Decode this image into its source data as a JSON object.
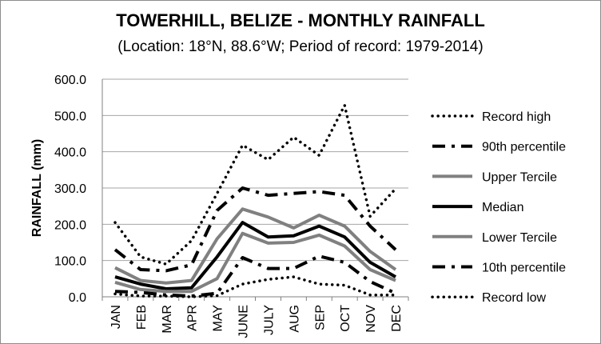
{
  "chart_data": {
    "type": "line",
    "title": "TOWERHILL, BELIZE - MONTHLY RAINFALL",
    "subtitle": "(Location: 18°N, 88.6°W; Period of record: 1979-2014)",
    "xlabel": "",
    "ylabel": "RAINFALL (mm)",
    "ylim": [
      0,
      600
    ],
    "yticks": [
      "0.0",
      "100.0",
      "200.0",
      "300.0",
      "400.0",
      "500.0",
      "600.0"
    ],
    "grid": "horizontal",
    "legend_position": "right",
    "categories": [
      "JAN",
      "FEB",
      "MAR",
      "APR",
      "MAY",
      "JUNE",
      "JULY",
      "AUG",
      "SEP",
      "OCT",
      "NOV",
      "DEC"
    ],
    "series": [
      {
        "name": "Record high",
        "style": "dotted",
        "color": "#000000",
        "values": [
          205,
          110,
          90,
          155,
          285,
          418,
          378,
          440,
          390,
          528,
          222,
          298
        ]
      },
      {
        "name": "90th percentile",
        "style": "dashdot",
        "color": "#000000",
        "values": [
          130,
          75,
          72,
          88,
          238,
          300,
          280,
          285,
          290,
          280,
          195,
          130
        ]
      },
      {
        "name": "Upper Tercile",
        "style": "solid",
        "color": "#808080",
        "values": [
          80,
          45,
          38,
          45,
          160,
          242,
          220,
          190,
          225,
          195,
          125,
          75
        ]
      },
      {
        "name": "Median",
        "style": "solid",
        "color": "#000000",
        "values": [
          55,
          35,
          22,
          25,
          110,
          205,
          165,
          168,
          195,
          165,
          95,
          55
        ]
      },
      {
        "name": "Lower Tercile",
        "style": "solid",
        "color": "#808080",
        "values": [
          40,
          20,
          15,
          15,
          50,
          175,
          148,
          150,
          170,
          140,
          75,
          45
        ]
      },
      {
        "name": "10th percentile",
        "style": "dashdot",
        "color": "#000000",
        "values": [
          15,
          12,
          5,
          2,
          10,
          108,
          78,
          78,
          112,
          95,
          42,
          10
        ]
      },
      {
        "name": "Record low",
        "style": "dotted",
        "color": "#000000",
        "values": [
          8,
          2,
          2,
          0,
          3,
          35,
          48,
          55,
          35,
          32,
          5,
          5
        ]
      }
    ]
  }
}
